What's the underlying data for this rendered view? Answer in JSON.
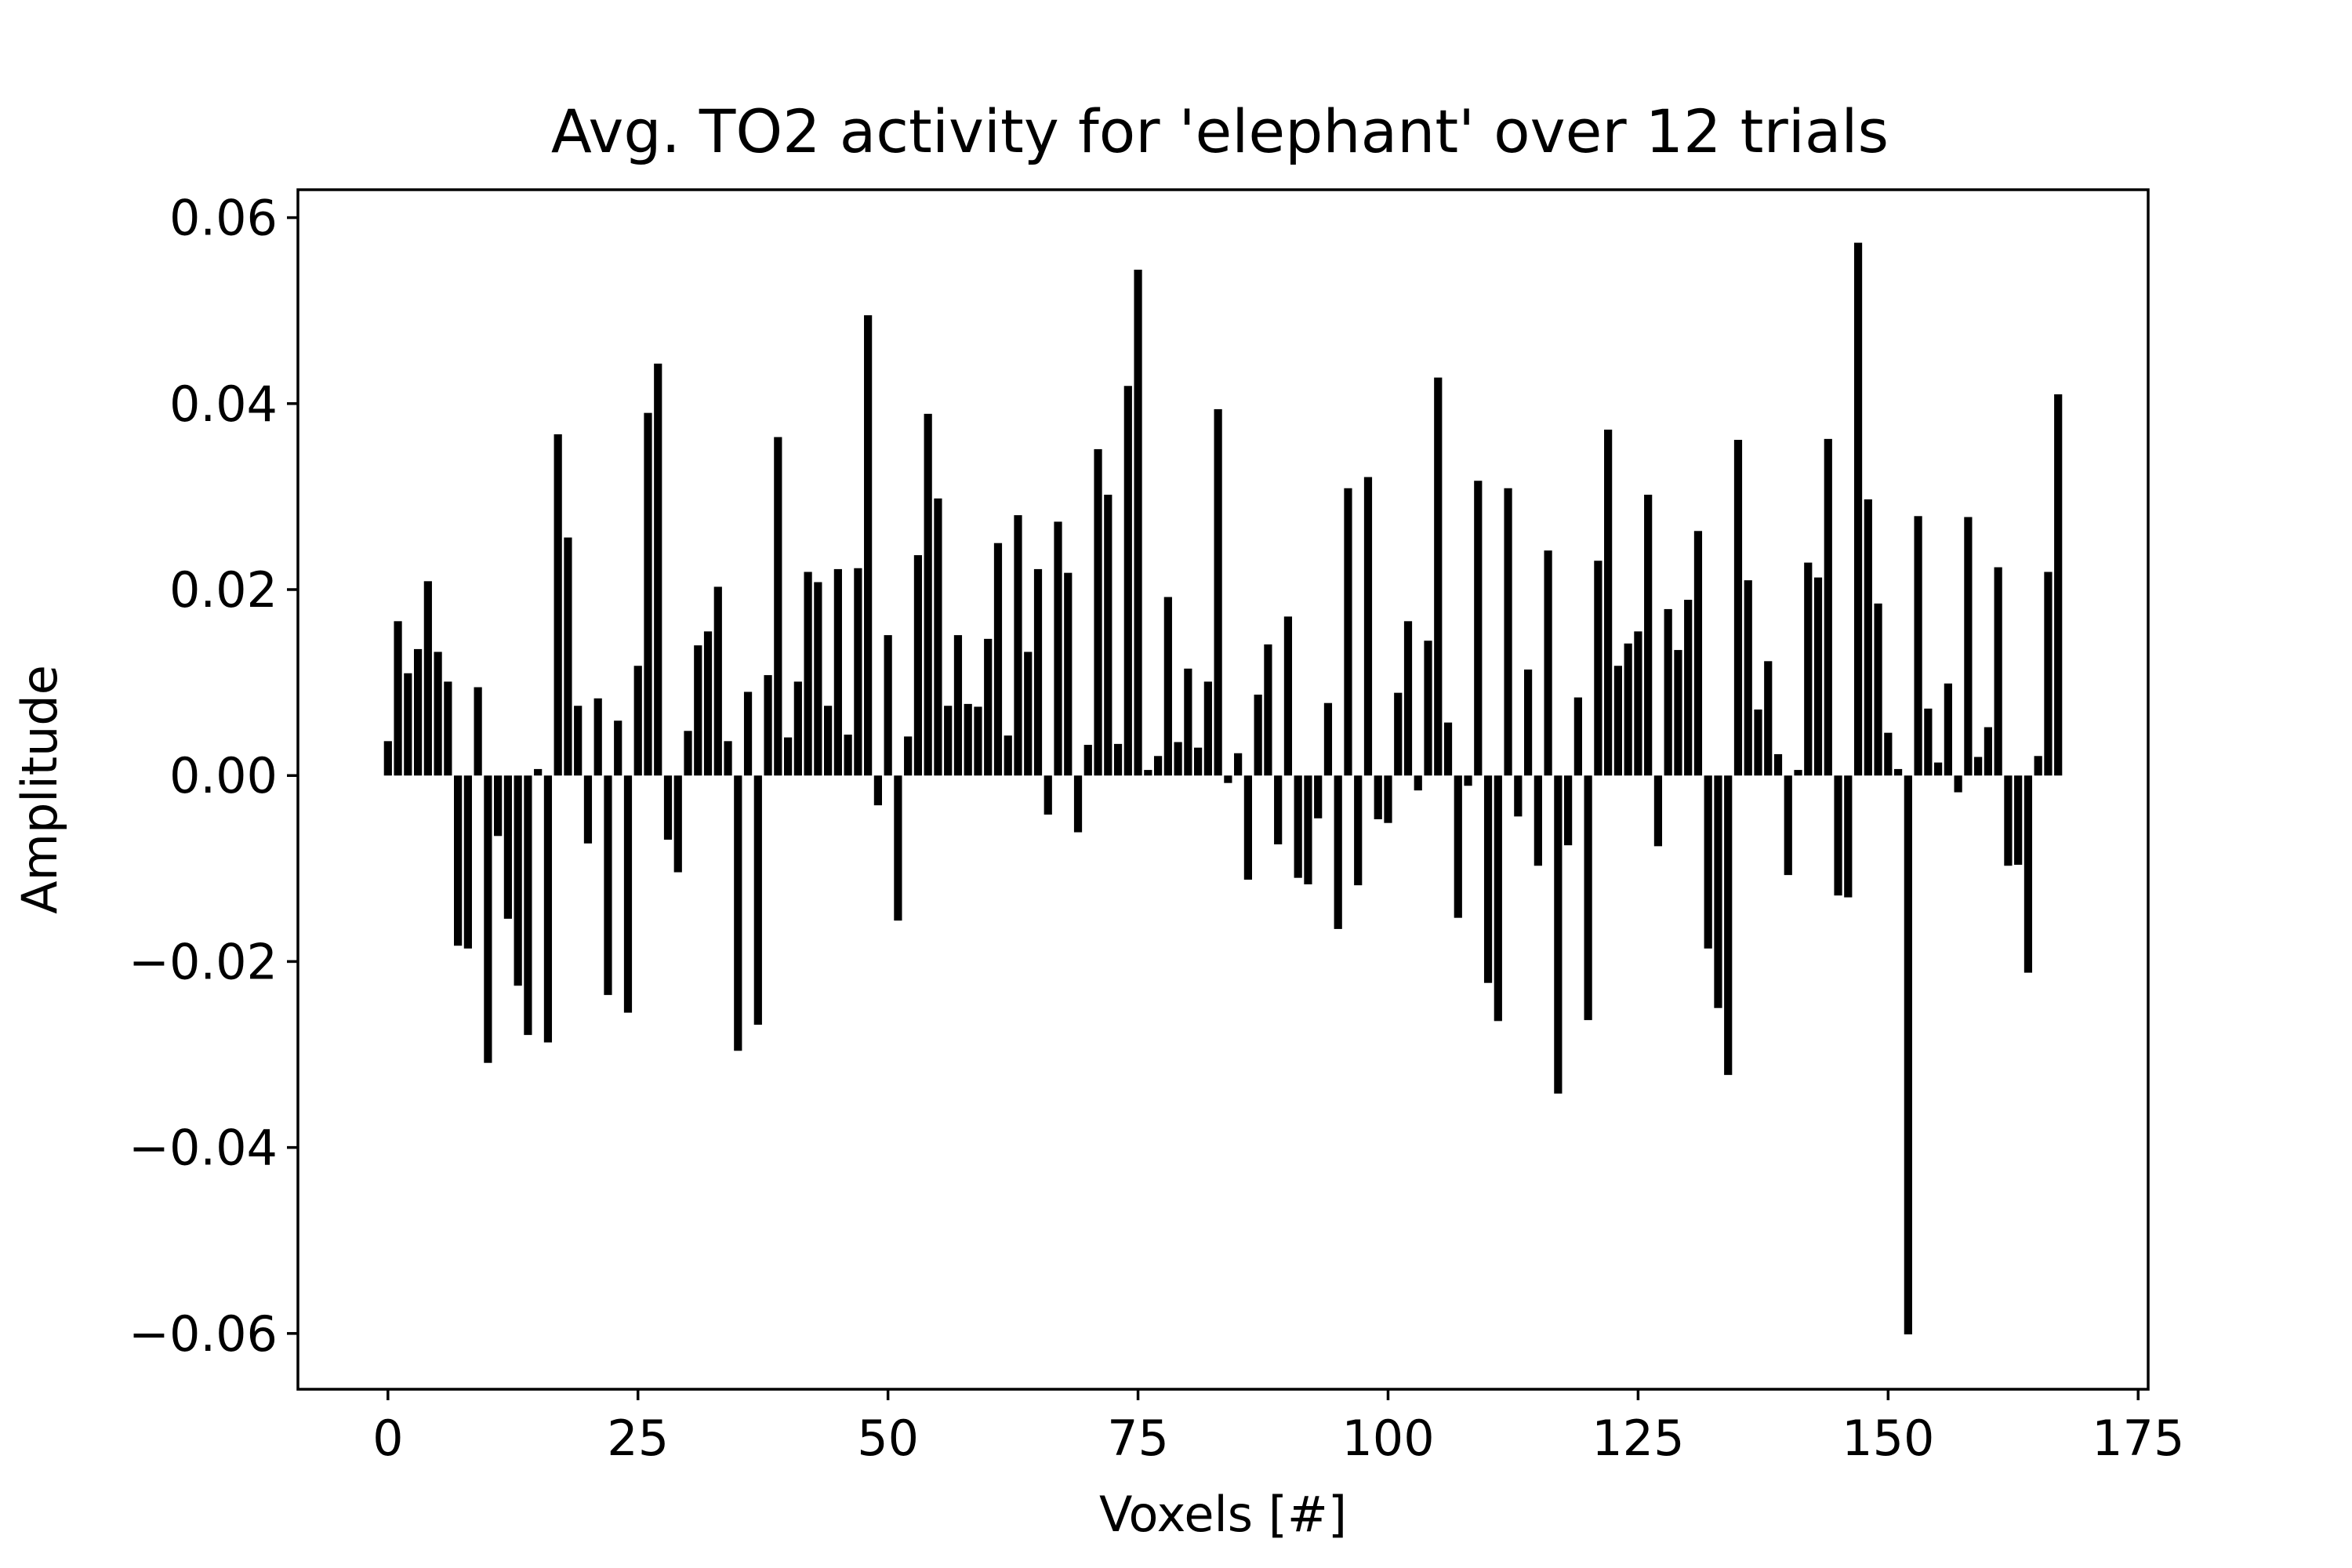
{
  "chart_data": {
    "type": "bar",
    "title": "Avg. TO2 activity for 'elephant' over 12 trials",
    "xlabel": "Voxels [#]",
    "ylabel": "Amplitude",
    "xlim": [
      -9,
      176
    ],
    "ylim": [
      -0.066,
      0.063
    ],
    "xticks": [
      0,
      25,
      50,
      75,
      100,
      125,
      150,
      175
    ],
    "xtick_labels": [
      "0",
      "25",
      "50",
      "75",
      "100",
      "125",
      "150",
      "175"
    ],
    "yticks": [
      0.06,
      0.04,
      0.02,
      0.0,
      -0.02,
      -0.04,
      -0.06
    ],
    "ytick_labels": [
      "0.06",
      "0.04",
      "0.02",
      "0.00",
      "−0.02",
      "−0.04",
      "−0.06"
    ],
    "bar_color": "#000000",
    "grid": false,
    "legend": "none",
    "x": [
      0,
      1,
      2,
      3,
      4,
      5,
      6,
      7,
      8,
      9,
      10,
      11,
      12,
      13,
      14,
      15,
      16,
      17,
      18,
      19,
      20,
      21,
      22,
      23,
      24,
      25,
      26,
      27,
      28,
      29,
      30,
      31,
      32,
      33,
      34,
      35,
      36,
      37,
      38,
      39,
      40,
      41,
      42,
      43,
      44,
      45,
      46,
      47,
      48,
      49,
      50,
      51,
      52,
      53,
      54,
      55,
      56,
      57,
      58,
      59,
      60,
      61,
      62,
      63,
      64,
      65,
      66,
      67,
      68,
      69,
      70,
      71,
      72,
      73,
      74,
      75,
      76,
      77,
      78,
      79,
      80,
      81,
      82,
      83,
      84,
      85,
      86,
      87,
      88,
      89,
      90,
      91,
      92,
      93,
      94,
      95,
      96,
      97,
      98,
      99,
      100,
      101,
      102,
      103,
      104,
      105,
      106,
      107,
      108,
      109,
      110,
      111,
      112,
      113,
      114,
      115,
      116,
      117,
      118,
      119,
      120,
      121,
      122,
      123,
      124,
      125,
      126,
      127,
      128,
      129,
      130,
      131,
      132,
      133,
      134,
      135,
      136,
      137,
      138,
      139,
      140,
      141,
      142,
      143,
      144,
      145,
      146,
      147,
      148,
      149,
      150,
      151,
      152,
      153,
      154,
      155,
      156,
      157,
      158,
      159,
      160,
      161,
      162,
      163,
      164,
      165,
      166,
      167
    ],
    "values": [
      0.0037,
      0.0166,
      0.011,
      0.0136,
      0.0209,
      0.0133,
      0.0101,
      -0.0183,
      -0.0186,
      0.0095,
      -0.0309,
      -0.0065,
      -0.0154,
      -0.0226,
      -0.0279,
      0.0007,
      -0.0287,
      0.0367,
      0.0256,
      0.0075,
      -0.0073,
      0.0083,
      -0.0236,
      0.0059,
      -0.0255,
      0.0118,
      0.039,
      0.0443,
      -0.0069,
      -0.0104,
      0.0048,
      0.014,
      0.0155,
      0.0203,
      0.0037,
      -0.0296,
      0.009,
      -0.0268,
      0.0108,
      0.0364,
      0.0041,
      0.0101,
      0.0219,
      0.0208,
      0.0075,
      0.0222,
      0.0044,
      0.0223,
      0.0495,
      -0.0032,
      0.0151,
      -0.0156,
      0.0042,
      0.0237,
      0.0389,
      0.0298,
      0.0075,
      0.0151,
      0.0077,
      0.0074,
      0.0147,
      0.025,
      0.0043,
      0.028,
      0.0133,
      0.0222,
      -0.0042,
      0.0273,
      0.0218,
      -0.0061,
      0.0033,
      0.0351,
      0.0302,
      0.0034,
      0.0419,
      0.0544,
      0.0006,
      0.0021,
      0.0192,
      0.0036,
      0.0115,
      0.003,
      0.0101,
      0.0394,
      -0.0008,
      0.0024,
      -0.0112,
      0.0087,
      0.0141,
      -0.0074,
      0.0171,
      -0.011,
      -0.0117,
      -0.0046,
      0.0078,
      -0.0165,
      0.0309,
      -0.0118,
      0.0321,
      -0.0047,
      -0.0051,
      0.0089,
      0.0166,
      -0.0016,
      0.0145,
      0.0428,
      0.0057,
      -0.0153,
      -0.0011,
      0.0317,
      -0.0223,
      -0.0264,
      0.0309,
      -0.0044,
      0.0114,
      -0.0097,
      0.0242,
      -0.0342,
      -0.0075,
      0.0084,
      -0.0263,
      0.0231,
      0.0372,
      0.0118,
      0.0142,
      0.0155,
      0.0302,
      -0.0076,
      0.0179,
      0.0135,
      0.0189,
      0.0263,
      -0.0186,
      -0.025,
      -0.0322,
      0.0361,
      0.021,
      0.0071,
      0.0123,
      0.0023,
      -0.0107,
      0.0006,
      0.0229,
      0.0213,
      0.0362,
      -0.0129,
      -0.0131,
      0.0573,
      0.0297,
      0.0185,
      0.0046,
      0.0007,
      -0.0601,
      0.0279,
      0.0072,
      0.0014,
      0.0099,
      -0.0018,
      0.0278,
      0.002,
      0.0052,
      0.0224,
      -0.0097,
      -0.0096,
      -0.0212,
      0.0021,
      0.0219,
      0.041
    ]
  }
}
